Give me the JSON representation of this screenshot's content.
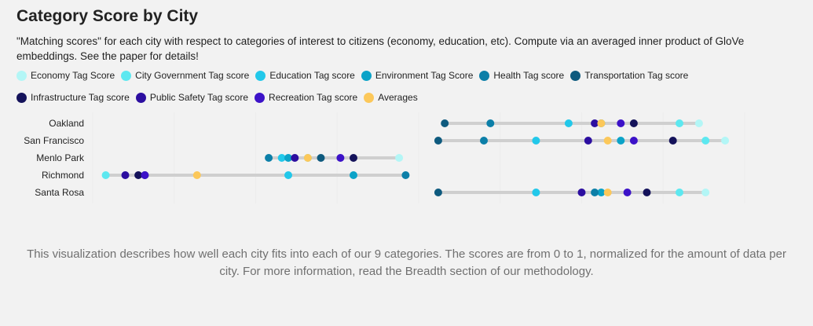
{
  "title": "Category Score by City",
  "subtitle": "\"Matching scores\" for each city with respect to categories of interest to citizens (economy, education, etc). Compute via an averaged inner product of GloVe embeddings. See the paper for details!",
  "footer": "This visualization describes how well each city fits into each of our 9 categories. The scores are from 0 to 1, normalized for the amount of data per city. For more information, read the Breadth section of our methodology.",
  "chart_data": {
    "type": "dot",
    "title": "Category Score by City",
    "xlim": [
      0,
      1
    ],
    "legend_position": "top-left",
    "categories": [
      "Oakland",
      "San Francisco",
      "Menlo Park",
      "Richmond",
      "Santa Rosa"
    ],
    "series": [
      {
        "name": "Economy Tag Score",
        "color": "#b3f6f6",
        "values": [
          0.93,
          0.97,
          0.47,
          0.05,
          0.94
        ]
      },
      {
        "name": "City Government Tag score",
        "color": "#5de8f0",
        "values": [
          0.9,
          0.94,
          0.33,
          0.02,
          0.9
        ]
      },
      {
        "name": "Education Tag score",
        "color": "#22c8ea",
        "values": [
          0.73,
          0.68,
          0.29,
          0.3,
          0.68
        ]
      },
      {
        "name": "Environment Tag Score",
        "color": "#0ba3c8",
        "values": [
          0.78,
          0.81,
          0.3,
          0.4,
          0.78
        ]
      },
      {
        "name": "Health Tag score",
        "color": "#0c7fa8",
        "values": [
          0.61,
          0.6,
          0.27,
          0.48,
          0.77
        ]
      },
      {
        "name": "Transportation Tag score",
        "color": "#0e5a7e",
        "values": [
          0.54,
          0.53,
          0.35,
          0.08,
          0.53
        ]
      },
      {
        "name": "Infrastructure Tag score",
        "color": "#14125a",
        "values": [
          0.83,
          0.89,
          0.4,
          0.07,
          0.85
        ]
      },
      {
        "name": "Public Safety Tag score",
        "color": "#2c0ea0",
        "values": [
          0.77,
          0.76,
          0.31,
          0.05,
          0.75
        ]
      },
      {
        "name": "Recreation Tag score",
        "color": "#3c12c8",
        "values": [
          0.81,
          0.83,
          0.38,
          0.08,
          0.82
        ]
      },
      {
        "name": "Averages",
        "color": "#fcc85a",
        "values": [
          0.78,
          0.79,
          0.33,
          0.16,
          0.79
        ]
      }
    ]
  }
}
